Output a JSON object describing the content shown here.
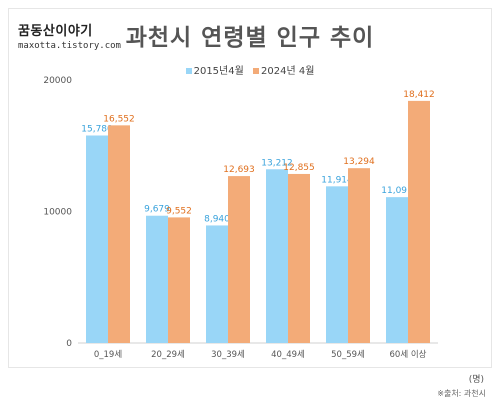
{
  "brand": {
    "name": "꿈동산이야기",
    "url": "maxotta.tistory.com"
  },
  "unit_note": "(명)",
  "source_note": "※출처: 과천시",
  "colors": {
    "s2015": "#99d6f7",
    "s2024": "#f3ab78",
    "label2015": "#3aa3dc",
    "label2024": "#e0701f",
    "axis": "#d0d0d0"
  },
  "chart_data": {
    "type": "bar",
    "title": "과천시 연령별 인구 추이",
    "categories": [
      "0_19세",
      "20_29세",
      "30_39세",
      "40_49세",
      "50_59세",
      "60세 이상"
    ],
    "series": [
      {
        "name": "2015년4월",
        "values": [
          15780,
          9679,
          8940,
          13212,
          11914,
          11091
        ],
        "labels": [
          "15,780",
          "9,679",
          "8,940",
          "13,212",
          "11,914",
          "11,091"
        ]
      },
      {
        "name": "2024년 4월",
        "values": [
          16552,
          9552,
          12693,
          12855,
          13294,
          18412
        ],
        "labels": [
          "16,552",
          "9,552",
          "12,693",
          "12,855",
          "13,294",
          "18,412"
        ]
      }
    ],
    "yticks": [
      "0",
      "10000",
      "20000"
    ],
    "ylim": [
      0,
      20000
    ],
    "grid": false,
    "legend": "top-center"
  }
}
